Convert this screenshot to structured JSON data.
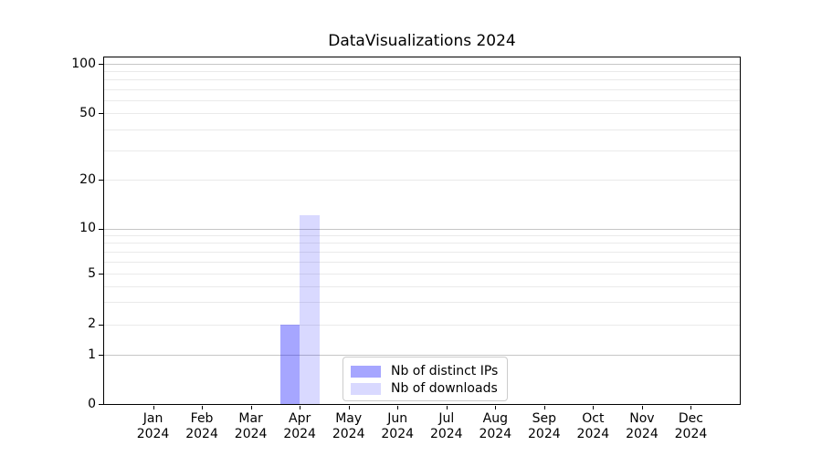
{
  "title": "DataVisualizations 2024",
  "chart_data": {
    "type": "bar",
    "title": "DataVisualizations 2024",
    "categories": [
      "Jan 2024",
      "Feb 2024",
      "Mar 2024",
      "Apr 2024",
      "May 2024",
      "Jun 2024",
      "Jul 2024",
      "Aug 2024",
      "Sep 2024",
      "Oct 2024",
      "Nov 2024",
      "Dec 2024"
    ],
    "series": [
      {
        "name": "Nb of distinct IPs",
        "color": "#a6a6ff",
        "fill": "rgba(0,0,255,0.35)",
        "values": [
          0,
          0,
          0,
          2,
          0,
          0,
          0,
          0,
          0,
          0,
          0,
          0
        ]
      },
      {
        "name": "Nb of downloads",
        "color": "#d9d9ff",
        "fill": "rgba(0,0,255,0.15)",
        "values": [
          0,
          0,
          0,
          12,
          0,
          0,
          0,
          0,
          0,
          0,
          0,
          0
        ]
      }
    ],
    "xlabel": "",
    "ylabel": "",
    "yticks": [
      0,
      1,
      2,
      5,
      10,
      20,
      50,
      100
    ],
    "ylim": [
      0,
      110
    ],
    "yscale": "log-like with zero baseline (symlog)",
    "grid": {
      "orientation": "horizontal",
      "major_values": [
        1,
        10,
        100
      ],
      "minor_values": [
        2,
        3,
        4,
        5,
        6,
        7,
        8,
        9,
        20,
        30,
        40,
        50,
        60,
        70,
        80,
        90
      ],
      "major_color": "#c6c6c6",
      "minor_color": "#eaeaea"
    },
    "legend_position": "lower center"
  },
  "legend": {
    "items": [
      {
        "label": "Nb of distinct IPs",
        "color": "#a6a6ff",
        "fill": "rgba(0,0,255,0.35)"
      },
      {
        "label": "Nb of downloads",
        "color": "#d9d9ff",
        "fill": "rgba(0,0,255,0.15)"
      }
    ]
  }
}
